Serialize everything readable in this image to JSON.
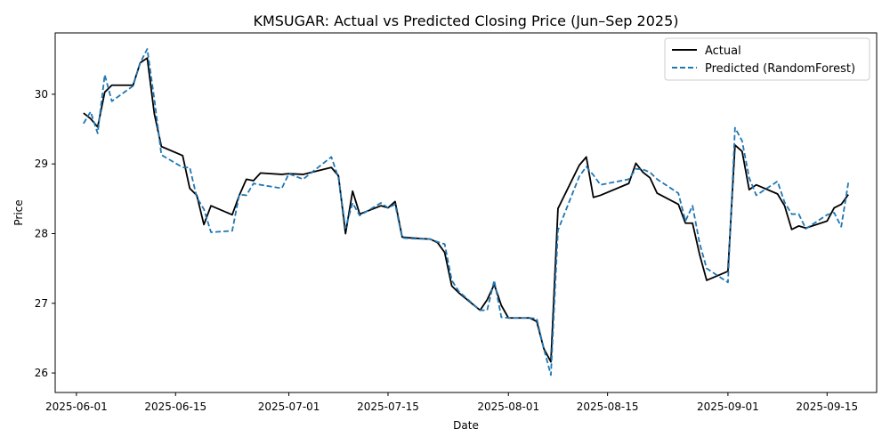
{
  "chart_data": {
    "type": "line",
    "title": "KMSUGAR: Actual vs Predicted Closing Price (Jun–Sep 2025)",
    "xlabel": "Date",
    "ylabel": "Price",
    "x_axis": "date",
    "xlim": [
      "2025-05-29",
      "2025-09-22"
    ],
    "ylim": [
      25.72,
      30.88
    ],
    "xticks": [
      "2025-06-01",
      "2025-06-15",
      "2025-07-01",
      "2025-07-15",
      "2025-08-01",
      "2025-08-15",
      "2025-09-01",
      "2025-09-15"
    ],
    "yticks": [
      26,
      27,
      28,
      29,
      30
    ],
    "grid": false,
    "legend_position": "top-right",
    "x": [
      "2025-06-02",
      "2025-06-03",
      "2025-06-04",
      "2025-06-05",
      "2025-06-06",
      "2025-06-09",
      "2025-06-10",
      "2025-06-11",
      "2025-06-12",
      "2025-06-13",
      "2025-06-16",
      "2025-06-17",
      "2025-06-18",
      "2025-06-19",
      "2025-06-20",
      "2025-06-23",
      "2025-06-24",
      "2025-06-25",
      "2025-06-26",
      "2025-06-27",
      "2025-06-30",
      "2025-07-01",
      "2025-07-03",
      "2025-07-07",
      "2025-07-08",
      "2025-07-09",
      "2025-07-10",
      "2025-07-11",
      "2025-07-14",
      "2025-07-15",
      "2025-07-16",
      "2025-07-17",
      "2025-07-18",
      "2025-07-21",
      "2025-07-22",
      "2025-07-23",
      "2025-07-24",
      "2025-07-25",
      "2025-07-28",
      "2025-07-29",
      "2025-07-30",
      "2025-07-31",
      "2025-08-01",
      "2025-08-04",
      "2025-08-05",
      "2025-08-06",
      "2025-08-07",
      "2025-08-08",
      "2025-08-11",
      "2025-08-12",
      "2025-08-13",
      "2025-08-14",
      "2025-08-18",
      "2025-08-19",
      "2025-08-20",
      "2025-08-21",
      "2025-08-22",
      "2025-08-25",
      "2025-08-26",
      "2025-08-27",
      "2025-08-28",
      "2025-08-29",
      "2025-09-01",
      "2025-09-02",
      "2025-09-03",
      "2025-09-04",
      "2025-09-05",
      "2025-09-08",
      "2025-09-09",
      "2025-09-10",
      "2025-09-11",
      "2025-09-12",
      "2025-09-15",
      "2025-09-16",
      "2025-09-17",
      "2025-09-18"
    ],
    "series": [
      {
        "name": "Actual",
        "color": "#000000",
        "style": "solid",
        "values": [
          29.73,
          29.65,
          29.53,
          30.03,
          30.13,
          30.13,
          30.45,
          30.52,
          29.72,
          29.25,
          29.12,
          28.65,
          28.55,
          28.13,
          28.4,
          28.27,
          28.55,
          28.78,
          28.76,
          28.87,
          28.85,
          28.86,
          28.85,
          28.95,
          28.83,
          28.0,
          28.61,
          28.28,
          28.4,
          28.37,
          28.46,
          27.95,
          27.94,
          27.92,
          27.87,
          27.73,
          27.25,
          27.15,
          26.9,
          27.05,
          27.27,
          26.97,
          26.79,
          26.79,
          26.74,
          26.35,
          26.16,
          28.36,
          28.98,
          29.1,
          28.52,
          28.55,
          28.72,
          29.01,
          28.88,
          28.8,
          28.58,
          28.42,
          28.15,
          28.15,
          27.7,
          27.33,
          27.46,
          29.27,
          29.18,
          28.63,
          28.7,
          28.57,
          28.4,
          28.06,
          28.11,
          28.08,
          28.18,
          28.37,
          28.42,
          28.56
        ]
      },
      {
        "name": "Predicted (RandomForest)",
        "color": "#1f77b4",
        "style": "dashed",
        "values": [
          29.58,
          29.75,
          29.44,
          30.28,
          29.9,
          30.12,
          30.45,
          30.65,
          29.93,
          29.13,
          28.95,
          28.95,
          28.52,
          28.35,
          28.02,
          28.04,
          28.56,
          28.55,
          28.72,
          28.7,
          28.65,
          28.86,
          28.78,
          29.1,
          28.8,
          28.08,
          28.44,
          28.26,
          28.44,
          28.37,
          28.42,
          27.94,
          27.93,
          27.92,
          27.88,
          27.85,
          27.33,
          27.17,
          26.9,
          26.9,
          27.33,
          26.8,
          26.79,
          26.79,
          26.78,
          26.35,
          25.97,
          28.05,
          28.82,
          28.96,
          28.84,
          28.7,
          28.78,
          28.93,
          28.92,
          28.88,
          28.78,
          28.58,
          28.18,
          28.4,
          27.86,
          27.5,
          27.3,
          29.52,
          29.33,
          28.8,
          28.55,
          28.75,
          28.45,
          28.28,
          28.28,
          28.07,
          28.27,
          28.3,
          28.1,
          28.73
        ]
      }
    ]
  }
}
